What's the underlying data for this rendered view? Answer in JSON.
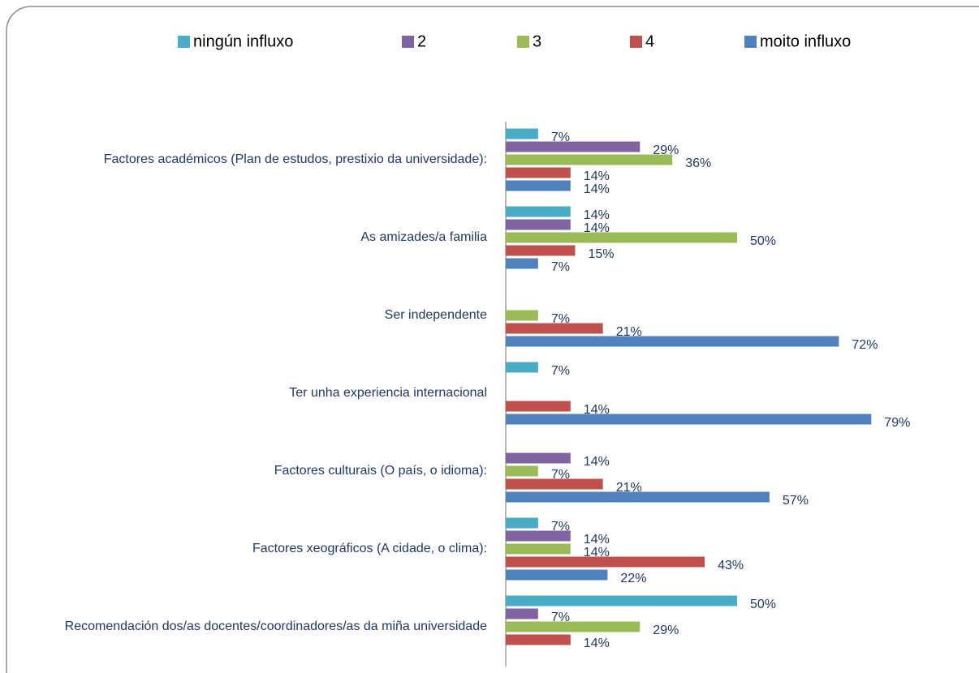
{
  "chart_data": {
    "type": "hbar",
    "categories": [
      "Factores académicos (Plan de estudos, prestixio da universidade):",
      "As amizades/a familia",
      "Ser independente",
      "Ter unha experiencia internacional",
      "Factores culturais (O país, o idioma):",
      "Factores xeográficos (A cidade, o clima):",
      "Recomendación dos/as docentes/coordinadores/as da miña universidade"
    ],
    "series": [
      {
        "name": "ningún influxo",
        "color": "#4bacc6",
        "values": [
          7,
          14,
          null,
          7,
          null,
          7,
          50
        ],
        "value_labels": [
          "7%",
          "14%",
          null,
          "7%",
          null,
          "7%",
          "50%"
        ]
      },
      {
        "name": "2",
        "color": "#8064a2",
        "values": [
          29,
          14,
          null,
          null,
          14,
          14,
          7
        ],
        "value_labels": [
          "29%",
          "14%",
          null,
          null,
          "14%",
          "14%",
          "7%"
        ]
      },
      {
        "name": "3",
        "color": "#9bbb59",
        "values": [
          36,
          50,
          7,
          null,
          7,
          14,
          29
        ],
        "value_labels": [
          "36%",
          "50%",
          "7%",
          null,
          "7%",
          "14%",
          "29%"
        ]
      },
      {
        "name": "4",
        "color": "#c0504d",
        "values": [
          14,
          15,
          21,
          14,
          21,
          43,
          14
        ],
        "value_labels": [
          "14%",
          "15%",
          "21%",
          "14%",
          "21%",
          "43%",
          "14%"
        ]
      },
      {
        "name": "moito influxo",
        "color": "#4f81bd",
        "values": [
          14,
          7,
          72,
          79,
          57,
          22,
          null
        ],
        "value_labels": [
          "14%",
          "7%",
          "72%",
          "79%",
          "57%",
          "22%",
          null
        ]
      }
    ],
    "legend": "top"
  }
}
